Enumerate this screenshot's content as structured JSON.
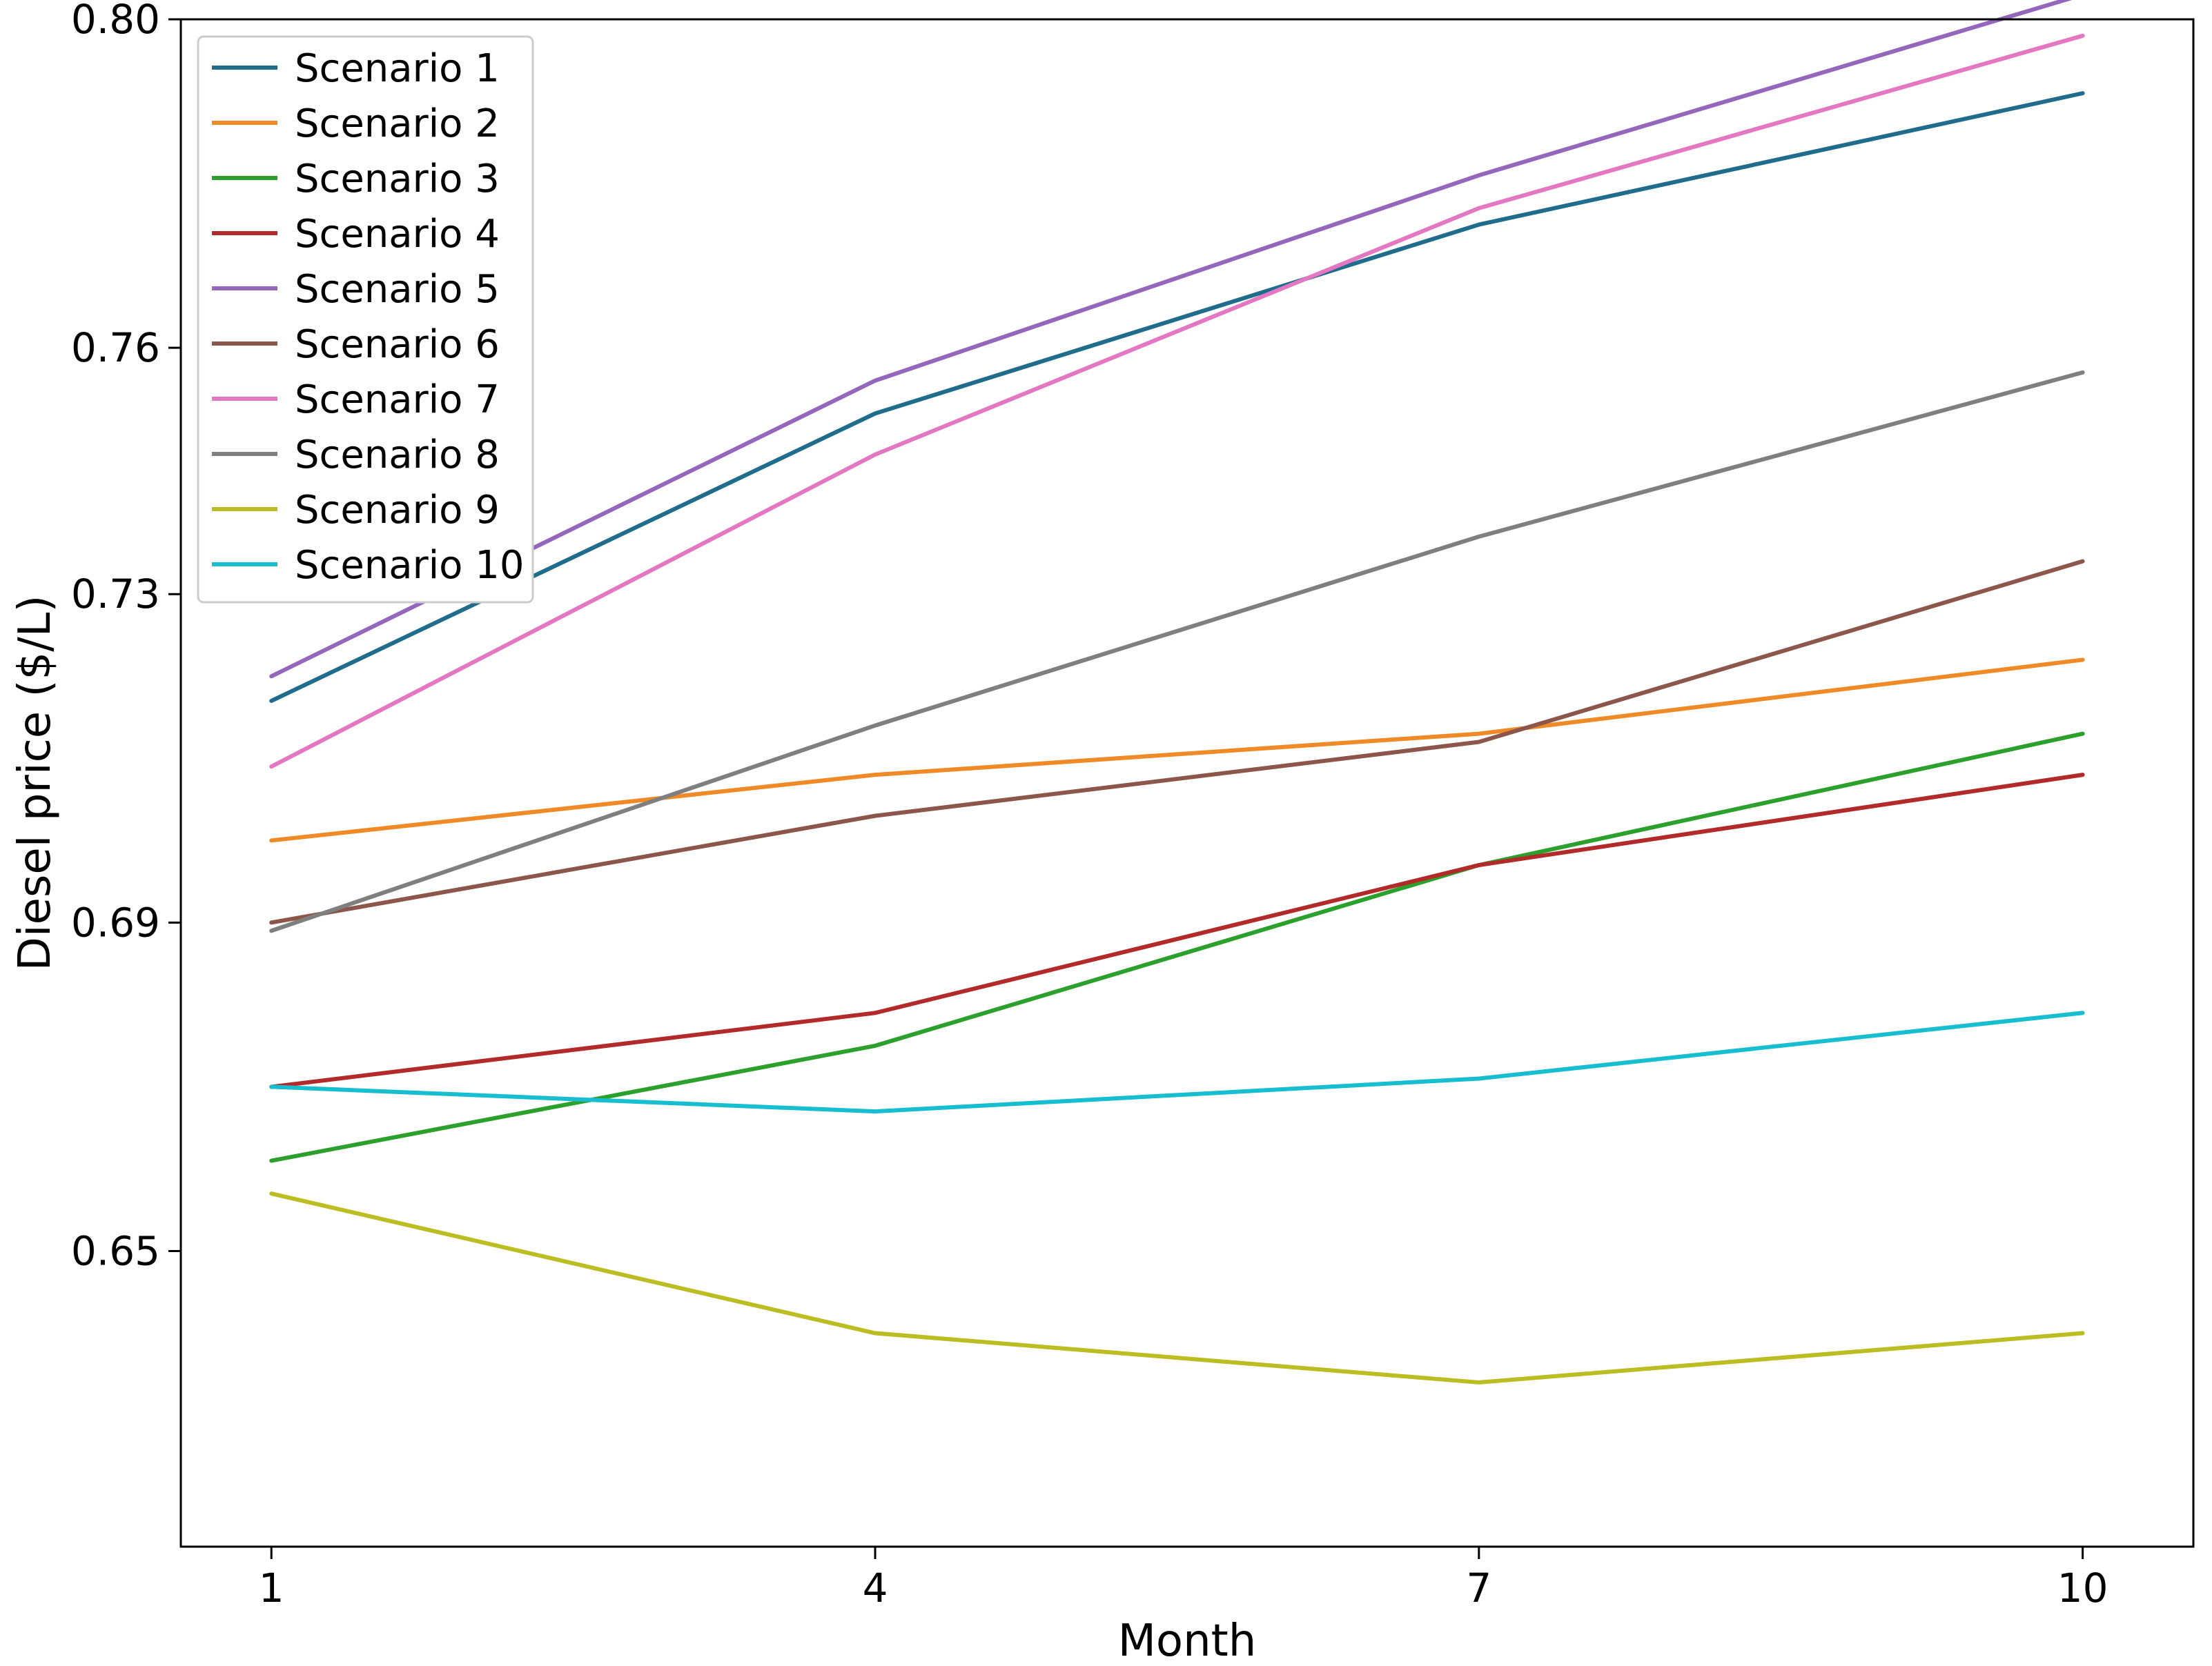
{
  "chart_data": {
    "type": "line",
    "title": "",
    "xlabel": "Month",
    "ylabel": "Diesel price ($/L)",
    "x": [
      1,
      4,
      7,
      10
    ],
    "xlim": [
      0.55,
      10.55
    ],
    "ylim": [
      0.614,
      0.8
    ],
    "x_ticks": [
      1,
      4,
      7,
      10
    ],
    "x_tick_labels": [
      "1",
      "4",
      "7",
      "10"
    ],
    "y_ticks": [
      0.65,
      0.69,
      0.73,
      0.76,
      0.8
    ],
    "y_tick_labels": [
      "0.65",
      "0.69",
      "0.73",
      "0.76",
      "0.80"
    ],
    "grid": false,
    "legend_position": "top-left",
    "series": [
      {
        "name": "Scenario 1",
        "color": "#1f6c8c",
        "values": [
          0.717,
          0.752,
          0.775,
          0.791
        ]
      },
      {
        "name": "Scenario 2",
        "color": "#ef8a26",
        "values": [
          0.7,
          0.708,
          0.713,
          0.722
        ]
      },
      {
        "name": "Scenario 3",
        "color": "#2ca02c",
        "values": [
          0.661,
          0.675,
          0.697,
          0.713
        ]
      },
      {
        "name": "Scenario 4",
        "color": "#b22a2a",
        "values": [
          0.67,
          0.679,
          0.697,
          0.708
        ]
      },
      {
        "name": "Scenario 5",
        "color": "#9467bd",
        "values": [
          0.72,
          0.756,
          0.781,
          0.803
        ]
      },
      {
        "name": "Scenario 6",
        "color": "#8c564b",
        "values": [
          0.69,
          0.703,
          0.712,
          0.734
        ]
      },
      {
        "name": "Scenario 7",
        "color": "#e377c2",
        "values": [
          0.709,
          0.747,
          0.777,
          0.798
        ]
      },
      {
        "name": "Scenario 8",
        "color": "#7f7f7f",
        "values": [
          0.689,
          0.714,
          0.737,
          0.757
        ]
      },
      {
        "name": "Scenario 9",
        "color": "#bcbd22",
        "values": [
          0.657,
          0.64,
          0.634,
          0.64
        ]
      },
      {
        "name": "Scenario 10",
        "color": "#17becf",
        "values": [
          0.67,
          0.667,
          0.671,
          0.679
        ]
      }
    ]
  }
}
